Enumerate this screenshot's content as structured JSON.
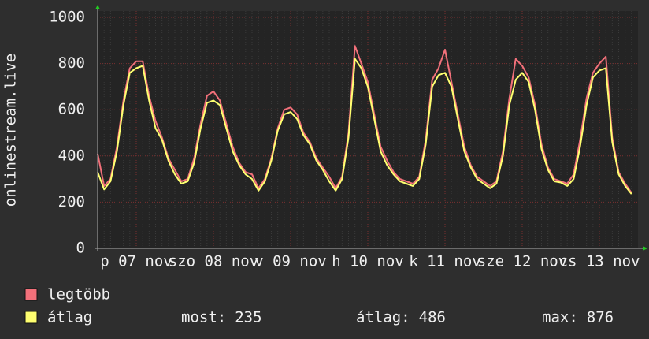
{
  "chart_data": {
    "type": "line",
    "y_label": "onlinestream.live",
    "categories": [
      null,
      null,
      null,
      null,
      null,
      null,
      "p 07 nov",
      null,
      null,
      null,
      null,
      null,
      null,
      null,
      null,
      null,
      null,
      null,
      "szo 08 nov",
      null,
      null,
      null,
      null,
      null,
      null,
      null,
      null,
      null,
      null,
      null,
      "v 09 nov",
      null,
      null,
      null,
      null,
      null,
      null,
      null,
      null,
      null,
      null,
      null,
      "h 10 nov",
      null,
      null,
      null,
      null,
      null,
      null,
      null,
      null,
      null,
      null,
      null,
      "k 11 nov",
      null,
      null,
      null,
      null,
      null,
      null,
      null,
      null,
      null,
      null,
      null,
      "sze 12 nov",
      null,
      null,
      null,
      null,
      null,
      null,
      null,
      null,
      null,
      null,
      null,
      "cs 13 nov",
      null,
      null,
      null,
      null,
      null
    ],
    "series": [
      {
        "name": "legtöbb",
        "color": "#f2707a",
        "values": [
          410,
          270,
          300,
          440,
          640,
          780,
          810,
          810,
          660,
          550,
          480,
          390,
          340,
          290,
          300,
          390,
          540,
          660,
          680,
          640,
          540,
          440,
          370,
          330,
          320,
          260,
          300,
          390,
          520,
          600,
          610,
          580,
          500,
          460,
          390,
          350,
          310,
          260,
          310,
          500,
          876,
          800,
          720,
          580,
          440,
          380,
          330,
          300,
          290,
          280,
          310,
          470,
          730,
          780,
          860,
          720,
          580,
          440,
          360,
          310,
          290,
          270,
          290,
          420,
          650,
          820,
          790,
          740,
          620,
          450,
          350,
          300,
          290,
          280,
          320,
          470,
          650,
          760,
          800,
          830,
          480,
          330,
          280,
          240
        ]
      },
      {
        "name": "átlag",
        "color": "#ffff70",
        "values": [
          330,
          255,
          290,
          420,
          620,
          760,
          780,
          790,
          640,
          520,
          470,
          380,
          320,
          280,
          290,
          370,
          520,
          630,
          640,
          620,
          520,
          420,
          360,
          320,
          300,
          250,
          290,
          380,
          510,
          580,
          590,
          560,
          490,
          450,
          380,
          340,
          290,
          250,
          300,
          480,
          820,
          780,
          700,
          560,
          420,
          360,
          320,
          290,
          280,
          270,
          300,
          450,
          700,
          750,
          760,
          700,
          560,
          420,
          350,
          300,
          280,
          260,
          280,
          400,
          620,
          730,
          760,
          720,
          600,
          430,
          340,
          290,
          285,
          270,
          300,
          440,
          620,
          740,
          770,
          780,
          460,
          320,
          270,
          235
        ]
      }
    ],
    "ylim": [
      0,
      1000
    ],
    "yticks": [
      0,
      200,
      400,
      600,
      800,
      1000
    ],
    "grid": true,
    "stats": [
      {
        "label": "most:",
        "value": 235
      },
      {
        "label": "átlag:",
        "value": 486
      },
      {
        "label": "max:",
        "value": 876
      }
    ]
  }
}
